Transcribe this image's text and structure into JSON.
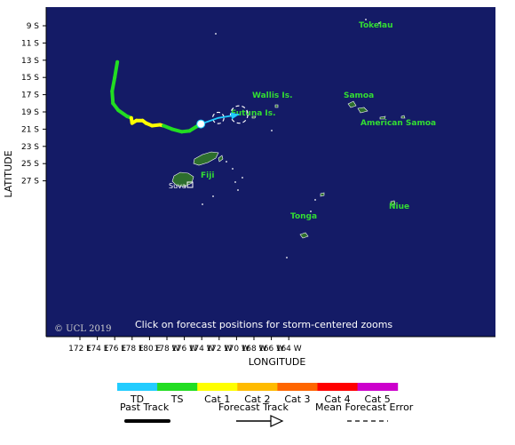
{
  "map": {
    "background_color": "#141b66",
    "land_color": "#2d6e2d",
    "axes": {
      "lat_labels": [
        "9 S",
        "11 S",
        "13 S",
        "15 S",
        "17 S",
        "19 S",
        "21 S",
        "23 S",
        "25 S",
        "27 S"
      ],
      "lon_labels": [
        "172 E",
        "174 E",
        "176 E",
        "178 E",
        "180 E",
        "178 W",
        "176 W",
        "174 W",
        "172 W",
        "170 W",
        "168 W",
        "166 W",
        "164 W"
      ],
      "x_title": "LONGITUDE",
      "y_title": "LATITUDE"
    },
    "places": [
      {
        "id": "tokelau",
        "label": "Tokelau"
      },
      {
        "id": "wallis",
        "label": "Wallis Is."
      },
      {
        "id": "samoa",
        "label": "Samoa"
      },
      {
        "id": "futuna",
        "label": "Futuna Is."
      },
      {
        "id": "american-samoa",
        "label": "American Samoa"
      },
      {
        "id": "fiji",
        "label": "Fiji"
      },
      {
        "id": "suva",
        "label": "Suva"
      },
      {
        "id": "tonga",
        "label": "Tonga"
      },
      {
        "id": "niue",
        "label": "Niue"
      }
    ],
    "instruction": "Click on forecast positions for storm-centered zooms",
    "copyright": "© UCL 2019"
  },
  "storm": {
    "past_track": [
      {
        "lat": -13.2,
        "lon": 176.3,
        "cat": "TS"
      },
      {
        "lat": -15.0,
        "lon": 176.0,
        "cat": "TS"
      },
      {
        "lat": -16.6,
        "lon": 175.7,
        "cat": "TS"
      },
      {
        "lat": -18.0,
        "lon": 175.8,
        "cat": "TS"
      },
      {
        "lat": -18.8,
        "lon": 176.4,
        "cat": "TS"
      },
      {
        "lat": -19.5,
        "lon": 177.4,
        "cat": "TS"
      },
      {
        "lat": -19.7,
        "lon": 177.9,
        "cat": "Cat 1"
      },
      {
        "lat": -20.3,
        "lon": 178.0,
        "cat": "Cat 1"
      },
      {
        "lat": -20.0,
        "lon": 178.5,
        "cat": "Cat 1"
      },
      {
        "lat": -20.0,
        "lon": 179.2,
        "cat": "Cat 1"
      },
      {
        "lat": -20.3,
        "lon": 179.6,
        "cat": "Cat 1"
      },
      {
        "lat": -20.6,
        "lon": 180.3,
        "cat": "Cat 1"
      },
      {
        "lat": -20.5,
        "lon": 181.2,
        "cat": "Cat 1"
      },
      {
        "lat": -20.6,
        "lon": 181.6,
        "cat": "TS"
      },
      {
        "lat": -21.0,
        "lon": 182.6,
        "cat": "TS"
      },
      {
        "lat": -21.3,
        "lon": 183.7,
        "cat": "TS"
      },
      {
        "lat": -21.2,
        "lon": 184.6,
        "cat": "TS"
      },
      {
        "lat": -20.7,
        "lon": 185.4,
        "cat": "TS"
      },
      {
        "lat": -20.4,
        "lon": 185.9,
        "cat": "TD"
      }
    ],
    "current_position": {
      "lat": -20.4,
      "lon": 185.9
    },
    "forecast_positions": [
      {
        "lat": -19.7,
        "lon": 187.9,
        "error_radius_deg": 0.65
      },
      {
        "lat": -19.3,
        "lon": 190.3,
        "error_radius_deg": 1.0
      }
    ]
  },
  "legend": {
    "categories": [
      {
        "label": "TD",
        "color": "#22ccff"
      },
      {
        "label": "TS",
        "color": "#22dd22"
      },
      {
        "label": "Cat 1",
        "color": "#ffff00"
      },
      {
        "label": "Cat 2",
        "color": "#ffbb00"
      },
      {
        "label": "Cat 3",
        "color": "#ff6600"
      },
      {
        "label": "Cat 4",
        "color": "#ff0000"
      },
      {
        "label": "Cat 5",
        "color": "#cc00cc"
      }
    ],
    "past_track_label": "Past Track",
    "forecast_track_label": "Forecast Track",
    "error_label": "Mean Forecast Error"
  }
}
